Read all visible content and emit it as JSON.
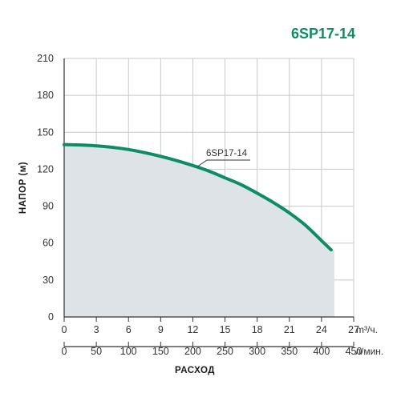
{
  "title": "6SP17-14",
  "colors": {
    "accent": "#0e8c66",
    "fill": "#dde3e6",
    "grid": "#c8c8c8",
    "axis": "#333333"
  },
  "chart_data": {
    "type": "area",
    "title": "6SP17-14",
    "ylabel": "НАПОР (м)",
    "xlabel": "РАСХОД",
    "ylim": [
      0,
      210
    ],
    "yticks": [
      0,
      30,
      60,
      90,
      120,
      150,
      180,
      210
    ],
    "xlim": [
      0,
      27
    ],
    "x_ticks_m3h": [
      0,
      3,
      6,
      9,
      12,
      15,
      18,
      21,
      24,
      27
    ],
    "x_unit_m3h": "m³/ч.",
    "x_ticks_lmin": [
      0,
      50,
      100,
      150,
      200,
      250,
      300,
      350,
      400,
      450
    ],
    "x_unit_lmin": "л/мин.",
    "grid": true,
    "series": [
      {
        "name": "6SP17-14",
        "x": [
          0,
          1.5,
          3,
          4.5,
          6,
          7.5,
          9,
          10.5,
          12,
          13.5,
          15,
          16.5,
          18,
          19.5,
          21,
          22.5,
          24,
          24.9
        ],
        "y": [
          140,
          139.7,
          139,
          137.8,
          136,
          133.5,
          130.5,
          127,
          123,
          118.5,
          113,
          107.5,
          100.5,
          93,
          84.5,
          74.5,
          62,
          54.5
        ]
      }
    ],
    "fill_end_x": 25.2
  }
}
